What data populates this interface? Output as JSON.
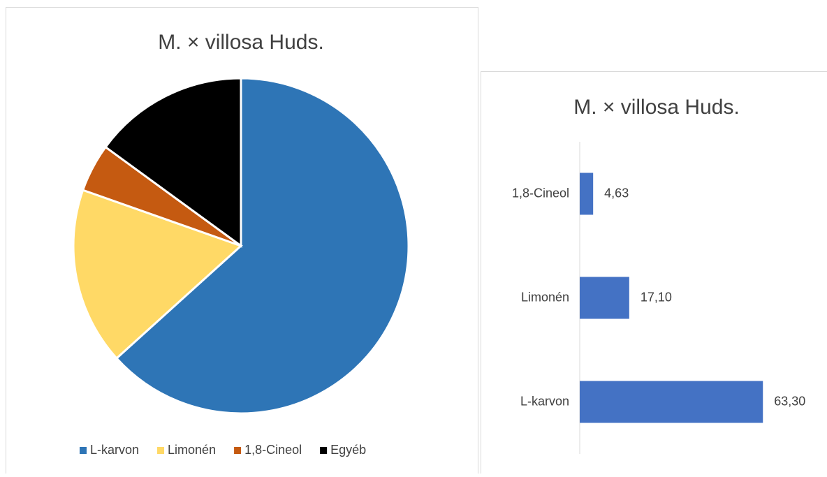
{
  "chart_data": [
    {
      "type": "pie",
      "title": "M. × villosa Huds.",
      "categories": [
        "L-karvon",
        "Limonén",
        "1,8-Cineol",
        "Egyéb"
      ],
      "values": [
        63.3,
        17.1,
        4.63,
        14.97
      ],
      "colors": [
        "#2e75b6",
        "#ffd966",
        "#c55a11",
        "#000000"
      ],
      "legend": "bottom"
    },
    {
      "type": "bar",
      "orientation": "horizontal",
      "title": "M. × villosa Huds.",
      "categories": [
        "L-karvon",
        "Limonén",
        "1,8-Cineol"
      ],
      "values": [
        63.3,
        17.1,
        4.63
      ],
      "value_labels": [
        "63,30",
        "17,10",
        "4,63"
      ],
      "color": "#4472c4",
      "xlim": [
        0,
        70
      ]
    }
  ]
}
